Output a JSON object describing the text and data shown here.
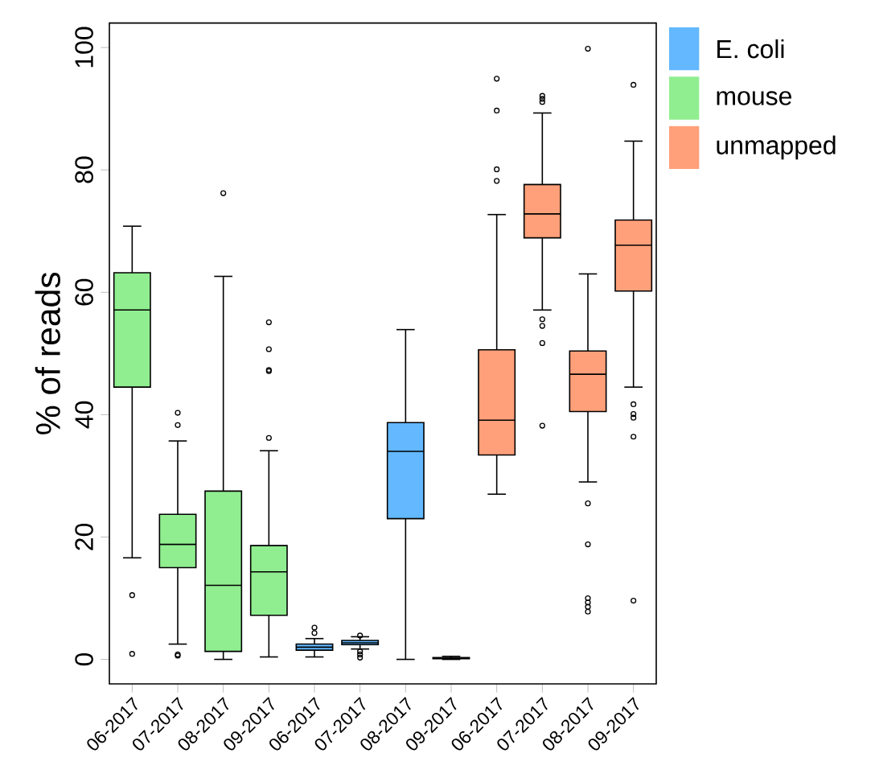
{
  "chart_data": {
    "type": "box",
    "ylabel": "% of reads",
    "categories": [
      "06-2017",
      "07-2017",
      "08-2017",
      "09-2017",
      "06-2017",
      "07-2017",
      "08-2017",
      "09-2017",
      "06-2017",
      "07-2017",
      "08-2017",
      "09-2017"
    ],
    "ylim": [
      -4,
      104
    ],
    "yticks": [
      0,
      20,
      40,
      60,
      80,
      100
    ],
    "grid": false,
    "legend": "top right",
    "marker": "circle",
    "series": [
      {
        "name": "E. coli",
        "color": "#63b8ff",
        "boxes": [
          null,
          null,
          null,
          null,
          {
            "low": 0.4,
            "q1": 1.5,
            "median": 2.0,
            "q3": 2.5,
            "high": 3.4,
            "outliers": [
              4.3,
              5.2
            ]
          },
          {
            "low": 1.7,
            "q1": 2.4,
            "median": 2.7,
            "q3": 3.1,
            "high": 3.7,
            "outliers": [
              3.9,
              1.3,
              0.8,
              0.3
            ]
          },
          {
            "low": 0,
            "q1": 23.0,
            "median": 34.0,
            "q3": 38.7,
            "high": 53.9
          },
          {
            "low": 0,
            "q1": 0.1,
            "median": 0.2,
            "q3": 0.3,
            "high": 0.5
          },
          null,
          null,
          null,
          null
        ]
      },
      {
        "name": "mouse",
        "color": "#90ee90",
        "boxes": [
          {
            "low": 16.6,
            "q1": 44.5,
            "median": 57.1,
            "q3": 63.2,
            "high": 70.8,
            "outliers": [
              10.5,
              0.9
            ]
          },
          {
            "low": 2.5,
            "q1": 15.0,
            "median": 18.8,
            "q3": 23.7,
            "high": 35.7,
            "outliers": [
              40.3,
              38.3,
              0.8,
              0.6
            ]
          },
          {
            "low": 0,
            "q1": 1.3,
            "median": 12.1,
            "q3": 27.5,
            "high": 62.6,
            "outliers": [
              76.2
            ]
          },
          {
            "low": 0.4,
            "q1": 7.2,
            "median": 14.3,
            "q3": 18.6,
            "high": 34.1,
            "outliers": [
              55.1,
              50.7,
              47.3,
              47.1,
              36.2
            ]
          },
          null,
          null,
          null,
          null,
          null,
          null,
          null,
          null
        ]
      },
      {
        "name": "unmapped",
        "color": "#ffa07a",
        "boxes": [
          null,
          null,
          null,
          null,
          null,
          null,
          null,
          null,
          {
            "low": 27.0,
            "q1": 33.4,
            "median": 39.1,
            "q3": 50.6,
            "high": 72.7,
            "outliers": [
              94.9,
              89.7,
              80.1,
              78.2
            ]
          },
          {
            "low": 57.1,
            "q1": 68.9,
            "median": 72.8,
            "q3": 77.6,
            "high": 89.3,
            "outliers": [
              92.1,
              91.6,
              91.1,
              55.6,
              54.5,
              51.7,
              38.2
            ]
          },
          {
            "low": 29.0,
            "q1": 40.5,
            "median": 46.6,
            "q3": 50.4,
            "high": 63.0,
            "outliers": [
              99.8,
              25.5,
              18.8,
              10.0,
              9.3,
              8.6,
              7.8
            ]
          },
          {
            "low": 44.5,
            "q1": 60.2,
            "median": 67.7,
            "q3": 71.8,
            "high": 84.7,
            "outliers": [
              93.9,
              41.7,
              40.1,
              39.5,
              36.4,
              9.6
            ]
          }
        ]
      }
    ]
  }
}
